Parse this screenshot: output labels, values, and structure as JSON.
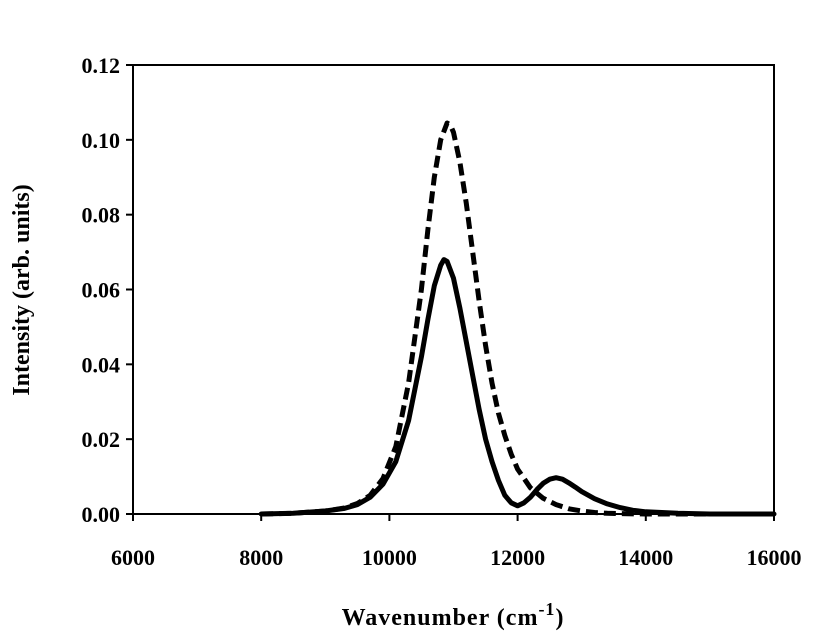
{
  "chart_data": {
    "type": "line",
    "title": "",
    "xlabel": "Wavenumber (cm",
    "xlabel_superscript": "-1",
    "xlabel_suffix": ")",
    "ylabel": "Intensity (arb. units)",
    "xlim": [
      6000,
      16000
    ],
    "ylim": [
      0,
      0.12
    ],
    "x_ticks": [
      6000,
      8000,
      10000,
      12000,
      14000,
      16000
    ],
    "x_tick_labels": [
      "6000",
      "8000",
      "10000",
      "12000",
      "14000",
      "16000"
    ],
    "y_ticks": [
      0,
      0.02,
      0.04,
      0.06,
      0.08,
      0.1,
      0.12
    ],
    "y_tick_labels": [
      "0.00",
      "0.02",
      "0.04",
      "0.06",
      "0.08",
      "0.10",
      "0.12"
    ],
    "grid": false,
    "legend": "none",
    "series": [
      {
        "style": "solid",
        "color": "#000000",
        "x": [
          8000,
          8500,
          9000,
          9300,
          9500,
          9700,
          9900,
          10100,
          10300,
          10500,
          10600,
          10700,
          10800,
          10850,
          10900,
          11000,
          11100,
          11200,
          11300,
          11400,
          11500,
          11600,
          11700,
          11800,
          11900,
          12000,
          12100,
          12200,
          12300,
          12400,
          12500,
          12600,
          12700,
          12800,
          12900,
          13000,
          13200,
          13400,
          13600,
          13800,
          14000,
          14500,
          15000,
          16000
        ],
        "y": [
          0.0,
          0.0002,
          0.0008,
          0.0015,
          0.0025,
          0.0045,
          0.008,
          0.014,
          0.025,
          0.042,
          0.052,
          0.061,
          0.0665,
          0.068,
          0.0675,
          0.063,
          0.055,
          0.046,
          0.037,
          0.028,
          0.02,
          0.014,
          0.009,
          0.005,
          0.003,
          0.0022,
          0.003,
          0.0045,
          0.0065,
          0.0082,
          0.0093,
          0.0097,
          0.0093,
          0.0083,
          0.0072,
          0.006,
          0.0041,
          0.0027,
          0.0017,
          0.001,
          0.0006,
          0.0002,
          0.0,
          0.0
        ]
      },
      {
        "style": "dashed",
        "color": "#000000",
        "x": [
          8000,
          8500,
          9000,
          9300,
          9500,
          9700,
          9900,
          10100,
          10300,
          10500,
          10600,
          10700,
          10800,
          10900,
          10950,
          11000,
          11100,
          11200,
          11300,
          11400,
          11500,
          11600,
          11700,
          11800,
          11900,
          12000,
          12200,
          12400,
          12600,
          12800,
          13000,
          13200,
          13400,
          13600,
          14000,
          14500,
          15000,
          16000
        ],
        "y": [
          0.0,
          0.0002,
          0.0008,
          0.0016,
          0.0028,
          0.005,
          0.0095,
          0.018,
          0.035,
          0.06,
          0.076,
          0.09,
          0.1,
          0.1045,
          0.104,
          0.102,
          0.094,
          0.083,
          0.07,
          0.057,
          0.045,
          0.035,
          0.027,
          0.021,
          0.016,
          0.012,
          0.007,
          0.0042,
          0.0025,
          0.0014,
          0.0008,
          0.0004,
          0.0002,
          0.0001,
          0.0,
          0.0,
          0.0,
          0.0
        ]
      }
    ]
  }
}
